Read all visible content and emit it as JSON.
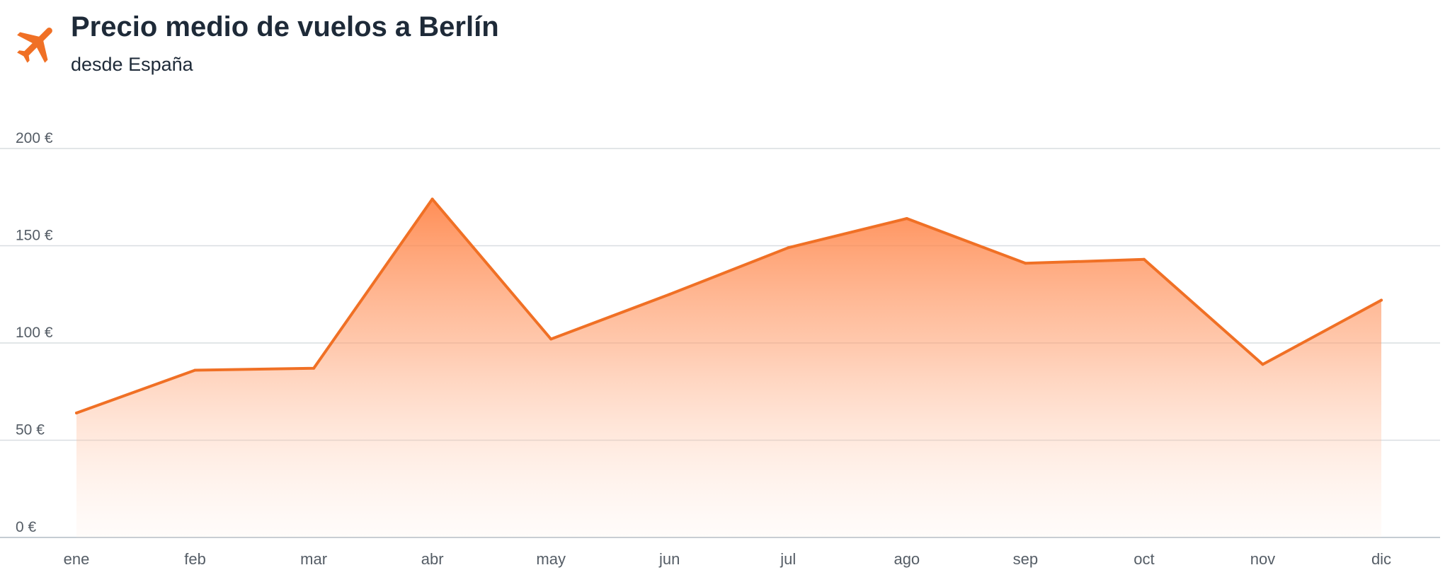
{
  "header": {
    "title": "Precio medio de vuelos a Berlín",
    "subtitle": "desde España",
    "icon": "airplane-icon"
  },
  "colors": {
    "accent": "#f07025",
    "title_text": "#1e2a38",
    "grid": "#d9dde1",
    "tick_text": "#555d66"
  },
  "chart_data": {
    "type": "area",
    "title": "Precio medio de vuelos a Berlín",
    "subtitle": "desde España",
    "xlabel": "",
    "ylabel": "",
    "categories": [
      "ene",
      "feb",
      "mar",
      "abr",
      "may",
      "jun",
      "jul",
      "ago",
      "sep",
      "oct",
      "nov",
      "dic"
    ],
    "series": [
      {
        "values": [
          64,
          86,
          87,
          174,
          102,
          125,
          149,
          164,
          141,
          143,
          89,
          122
        ]
      }
    ],
    "ylim": [
      0,
      200
    ],
    "yticks": [
      0,
      50,
      100,
      150,
      200
    ],
    "ytick_labels": [
      "0 €",
      "50 €",
      "100 €",
      "150 €",
      "200 €"
    ],
    "grid": true,
    "legend": "none"
  }
}
